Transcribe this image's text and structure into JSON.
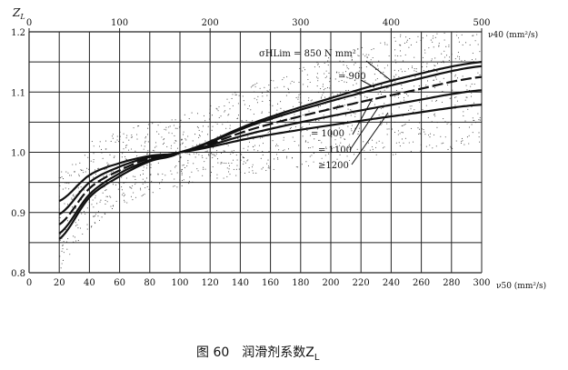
{
  "chart_data": {
    "type": "line",
    "caption": "图 60　润滑剂系数Z",
    "caption_sub": "L",
    "ylabel": "Z",
    "ylabel_sub": "L",
    "xlabel_bottom": "ν50 (mm²/s)",
    "xlabel_top": "ν40 (mm²/s)",
    "xlim_bottom": [
      0,
      300
    ],
    "xlim_top": [
      0,
      500
    ],
    "ylim": [
      0.8,
      1.2
    ],
    "x_ticks_bottom": [
      "0",
      "20",
      "40",
      "60",
      "80",
      "100",
      "120",
      "140",
      "160",
      "180",
      "200",
      "220",
      "240",
      "260",
      "280",
      "300"
    ],
    "x_ticks_top": [
      "0",
      "100",
      "200",
      "300",
      "400",
      "500"
    ],
    "y_ticks": [
      "0.8",
      "0.9",
      "1.0",
      "1.1",
      "1.2"
    ],
    "grid": true,
    "x": [
      20,
      40,
      60,
      80,
      100,
      150,
      200,
      250,
      300
    ],
    "series": [
      {
        "name": "σHLim = 850 N/mm²",
        "label": "σHLim = 850 N mm²",
        "style": "solid",
        "values": [
          0.856,
          0.925,
          0.96,
          0.985,
          1.0,
          1.05,
          1.09,
          1.125,
          1.15
        ]
      },
      {
        "name": "= 900",
        "label": "= 900",
        "style": "solid",
        "values": [
          0.865,
          0.93,
          0.965,
          0.987,
          1.0,
          1.047,
          1.085,
          1.117,
          1.143
        ]
      },
      {
        "name": "= 1000",
        "label": "= 1000",
        "style": "dashed",
        "values": [
          0.88,
          0.94,
          0.97,
          0.99,
          1.0,
          1.04,
          1.072,
          1.1,
          1.125
        ]
      },
      {
        "name": "= 1100",
        "label": "= 1100",
        "style": "solid",
        "values": [
          0.897,
          0.95,
          0.976,
          0.992,
          1.0,
          1.033,
          1.06,
          1.083,
          1.103
        ]
      },
      {
        "name": ">1200",
        "label": "≥1200",
        "style": "solid",
        "values": [
          0.919,
          0.962,
          0.982,
          0.994,
          1.0,
          1.025,
          1.045,
          1.063,
          1.079
        ]
      }
    ],
    "scatter_band": "stippled range band around curves",
    "colors": {
      "line": "#111111",
      "grid": "#222222",
      "stipple": "#444444"
    }
  }
}
